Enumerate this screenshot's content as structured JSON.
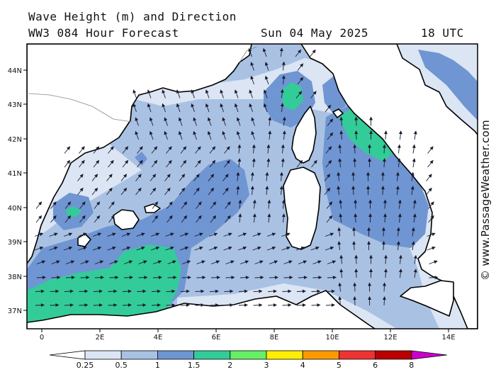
{
  "header": {
    "title": "Wave Height (m) and Direction",
    "model": "WW3 084 Hour Forecast",
    "date": "Sun 04 May 2025",
    "time": "18 UTC"
  },
  "credit": "© www.PassageWeather.com",
  "axes": {
    "lat_labels": [
      "44N",
      "43N",
      "42N",
      "41N",
      "40N",
      "39N",
      "38N",
      "37N"
    ],
    "lon_labels": [
      "0",
      "2E",
      "4E",
      "6E",
      "8E",
      "10E",
      "12E",
      "14E"
    ]
  },
  "legend": {
    "labels": [
      "0.25",
      "0.5",
      "1",
      "1.5",
      "2",
      "3",
      "4",
      "5",
      "6",
      "8"
    ],
    "colors": [
      "#ffffff",
      "#dbe5f3",
      "#a9c2e3",
      "#6f95d2",
      "#33cc99",
      "#66ee66",
      "#ffee00",
      "#ff9900",
      "#ee3333",
      "#bb0000",
      "#cc00cc"
    ]
  },
  "colors": {
    "land": "#ffffff",
    "sea_low": "#dbe5f3",
    "sea_mid": "#a9c2e3",
    "sea_high": "#6f95d2",
    "sea_peak": "#33cc99",
    "arrow": "#1a1a2e"
  }
}
